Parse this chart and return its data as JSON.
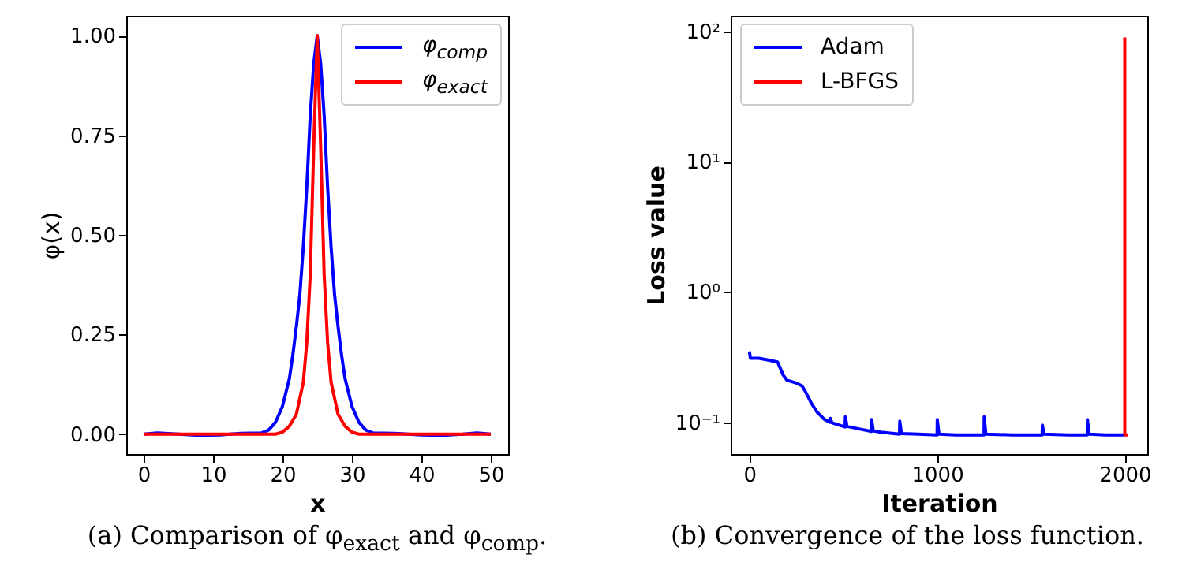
{
  "chart_data": [
    {
      "type": "line",
      "xlabel": "x",
      "ylabel": "φ(x)",
      "annotations": [
        "(a) Comparison of φ$_{exact}$ and φ$_{comp}$."
      ],
      "xlim": [
        -2.5,
        52.5
      ],
      "xticks": [
        0,
        10,
        20,
        30,
        40,
        50
      ],
      "ylim": [
        -0.05,
        1.05
      ],
      "yticks": [
        {
          "value": 0,
          "label": "0.00"
        },
        {
          "value": 0.25,
          "label": "0.25"
        },
        {
          "value": 0.5,
          "label": "0.50"
        },
        {
          "value": 0.75,
          "label": "0.75"
        },
        {
          "value": 1,
          "label": "1.00"
        }
      ],
      "grid": false,
      "legend": "top right",
      "series": [
        {
          "name": "φ$_{comp}$",
          "color": "#0000ff",
          "x": [
            0,
            2,
            5,
            8,
            11,
            14,
            17,
            18,
            19,
            20,
            21,
            21.5,
            22,
            22.5,
            23,
            23.5,
            24,
            24.5,
            25,
            25.5,
            26,
            26.5,
            27,
            27.5,
            28,
            28.5,
            29,
            30,
            31,
            32,
            33,
            36,
            40,
            43,
            46,
            48,
            50
          ],
          "values": [
            0,
            0.003,
            0,
            -0.003,
            -0.002,
            0.002,
            0.003,
            0.01,
            0.03,
            0.07,
            0.14,
            0.2,
            0.27,
            0.35,
            0.47,
            0.62,
            0.8,
            0.93,
            1,
            0.93,
            0.8,
            0.62,
            0.47,
            0.35,
            0.27,
            0.2,
            0.14,
            0.07,
            0.03,
            0.01,
            0.003,
            0.002,
            -0.002,
            -0.003,
            0,
            0.003,
            0
          ]
        },
        {
          "name": "φ$_{exact}$",
          "color": "#ff0000",
          "x": [
            0,
            5,
            10,
            15,
            19,
            20,
            21,
            22,
            23,
            23.5,
            24,
            24.5,
            25,
            25.5,
            26,
            26.5,
            27,
            28,
            29,
            30,
            31,
            35,
            40,
            45,
            50
          ],
          "values": [
            0,
            0,
            0,
            0,
            0,
            0.005,
            0.02,
            0.05,
            0.13,
            0.23,
            0.4,
            0.72,
            1,
            0.72,
            0.4,
            0.23,
            0.13,
            0.05,
            0.02,
            0.005,
            0,
            0,
            0,
            0,
            0
          ]
        }
      ]
    },
    {
      "type": "line",
      "xlabel": "Iteration",
      "ylabel": "Loss value",
      "annotations": [
        "(b) Convergence of the loss function."
      ],
      "xlim": [
        -100,
        2120
      ],
      "xticks": [
        0,
        1000,
        2000
      ],
      "ylim": [
        0.057,
        132
      ],
      "yticks": [
        {
          "value": 0.1,
          "label": "10⁻¹"
        },
        {
          "value": 1,
          "label": "10⁰"
        },
        {
          "value": 10,
          "label": "10¹"
        },
        {
          "value": 100,
          "label": "10²"
        }
      ],
      "log": "y",
      "grid": false,
      "legend": "top left",
      "series": [
        {
          "name": "Adam",
          "color": "#0000ff",
          "x": [
            0,
            5,
            10,
            50,
            100,
            150,
            180,
            200,
            250,
            280,
            300,
            330,
            360,
            400,
            430,
            431,
            440,
            480,
            510,
            511,
            520,
            600,
            650,
            651,
            660,
            700,
            800,
            801,
            810,
            900,
            1000,
            1001,
            1010,
            1100,
            1250,
            1251,
            1260,
            1400,
            1560,
            1561,
            1570,
            1700,
            1800,
            1801,
            1810,
            1900,
            2000
          ],
          "values": [
            0.35,
            0.31,
            0.31,
            0.31,
            0.3,
            0.29,
            0.23,
            0.21,
            0.2,
            0.19,
            0.17,
            0.14,
            0.12,
            0.105,
            0.1,
            0.107,
            0.099,
            0.095,
            0.092,
            0.11,
            0.093,
            0.088,
            0.085,
            0.105,
            0.086,
            0.084,
            0.081,
            0.102,
            0.082,
            0.081,
            0.08,
            0.105,
            0.081,
            0.08,
            0.08,
            0.11,
            0.081,
            0.08,
            0.08,
            0.095,
            0.081,
            0.08,
            0.08,
            0.105,
            0.081,
            0.08,
            0.08
          ]
        },
        {
          "name": "L-BFGS",
          "color": "#ff0000",
          "x": [
            2000,
            2000,
            2015
          ],
          "values": [
            90,
            0.08,
            0.08
          ]
        }
      ]
    }
  ]
}
